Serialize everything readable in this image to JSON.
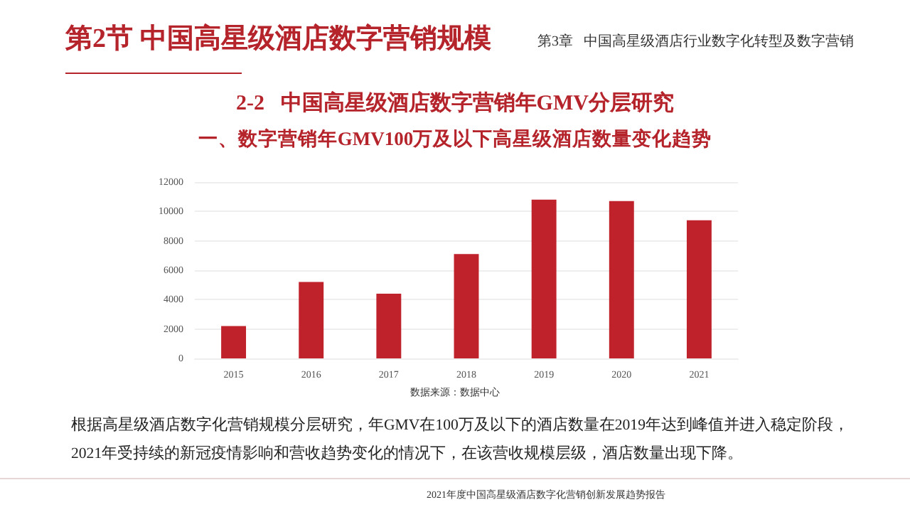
{
  "chart_data": {
    "type": "bar",
    "title": "2-2   中国高星级酒店数字营销年GMV分层研究",
    "subtitle": "一、数字营销年GMV100万及以下高星级酒店数量变化趋势",
    "categories": [
      "2015",
      "2016",
      "2017",
      "2018",
      "2019",
      "2020",
      "2021"
    ],
    "values": [
      2200,
      5200,
      4400,
      7100,
      10800,
      10700,
      9400
    ],
    "color": "#c0222c",
    "ylim": [
      0,
      12000
    ],
    "yticks": [
      0,
      2000,
      4000,
      6000,
      8000,
      10000,
      12000
    ],
    "grid": "y",
    "annotations": [
      "第2节  中国高星级酒店数字营销规模",
      "第3章   中国高星级酒店行业数字化转型及数字营销",
      "数据来源：数据中心",
      "根据高星级酒店数字化营销规模分层研究，年GMV在100万及以下的酒店数量在2019年达到峰值并进入稳定阶段，2021年受持续的新冠疫情影响和营收趋势变化的情况下，在该营收规模层级，酒店数量出现下降。",
      "2021年度中国高星级酒店数字化营销创新发展趋势报告"
    ]
  }
}
